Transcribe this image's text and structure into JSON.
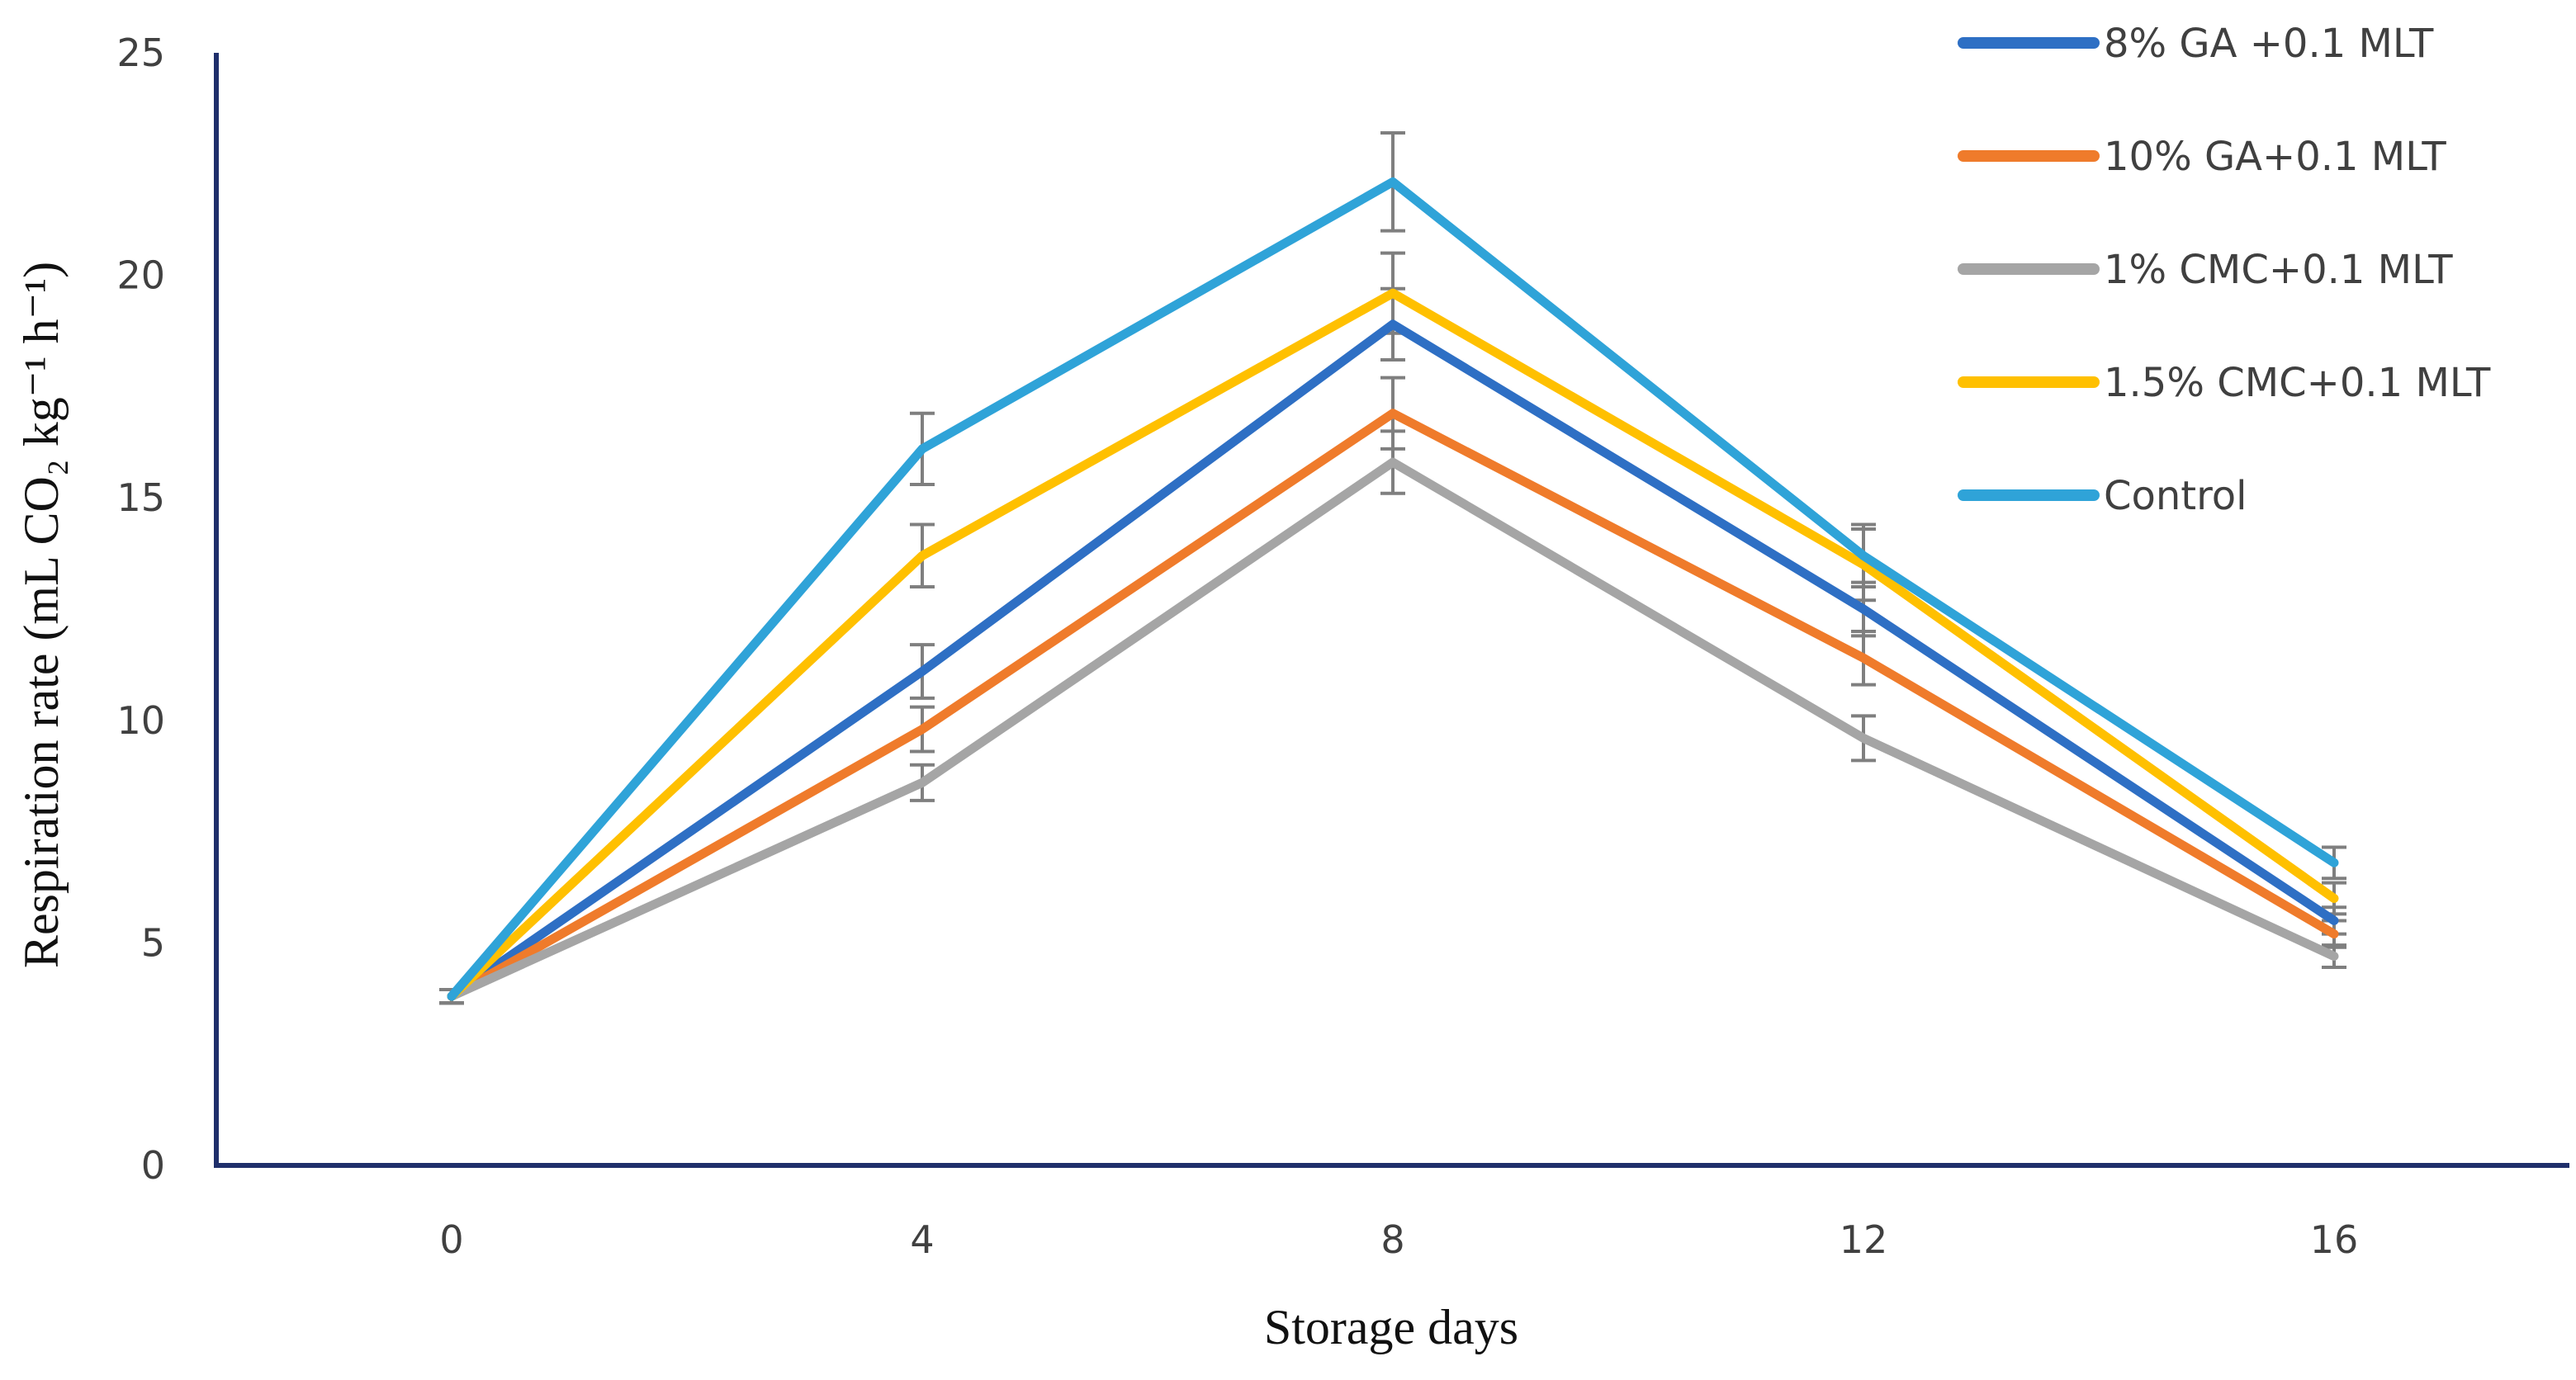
{
  "chart_data": {
    "type": "line",
    "title": "",
    "xlabel": "Storage days",
    "ylabel": "Respiration rate (mL CO₂ kg⁻¹ h⁻¹)",
    "x": [
      0,
      4,
      8,
      12,
      16
    ],
    "x_tick_labels": [
      "0",
      "4",
      "8",
      "12",
      "16"
    ],
    "y_tick_labels": [
      "0",
      "5",
      "10",
      "15",
      "20",
      "25"
    ],
    "ylim": [
      0,
      25
    ],
    "grid": false,
    "legend_position": "top-right",
    "axis_color": "#1f2f6b",
    "errorbar_color": "#7f7f7f",
    "series": [
      {
        "name": "8% GA +0.1 MLT",
        "color": "#2e6fc4",
        "values": [
          3.8,
          11.1,
          18.9,
          12.5,
          5.5
        ],
        "errors": [
          0.15,
          0.6,
          0.8,
          0.6,
          0.3
        ]
      },
      {
        "name": "10% GA+0.1 MLT",
        "color": "#ef7b2b",
        "values": [
          3.8,
          9.8,
          16.9,
          11.4,
          5.2
        ],
        "errors": [
          0.15,
          0.5,
          0.8,
          0.6,
          0.3
        ]
      },
      {
        "name": "1% CMC+0.1 MLT",
        "color": "#a5a5a5",
        "values": [
          3.8,
          8.6,
          15.8,
          9.6,
          4.7
        ],
        "errors": [
          0.15,
          0.4,
          0.7,
          0.5,
          0.25
        ]
      },
      {
        "name": "1.5% CMC+0.1 MLT",
        "color": "#ffc000",
        "values": [
          3.8,
          13.7,
          19.6,
          13.5,
          6.0
        ],
        "errors": [
          0.15,
          0.7,
          0.9,
          0.8,
          0.35
        ]
      },
      {
        "name": "Control",
        "color": "#2fa3d8",
        "values": [
          3.8,
          16.1,
          22.1,
          13.7,
          6.8
        ],
        "errors": [
          0.15,
          0.8,
          1.1,
          0.7,
          0.35
        ]
      }
    ]
  }
}
